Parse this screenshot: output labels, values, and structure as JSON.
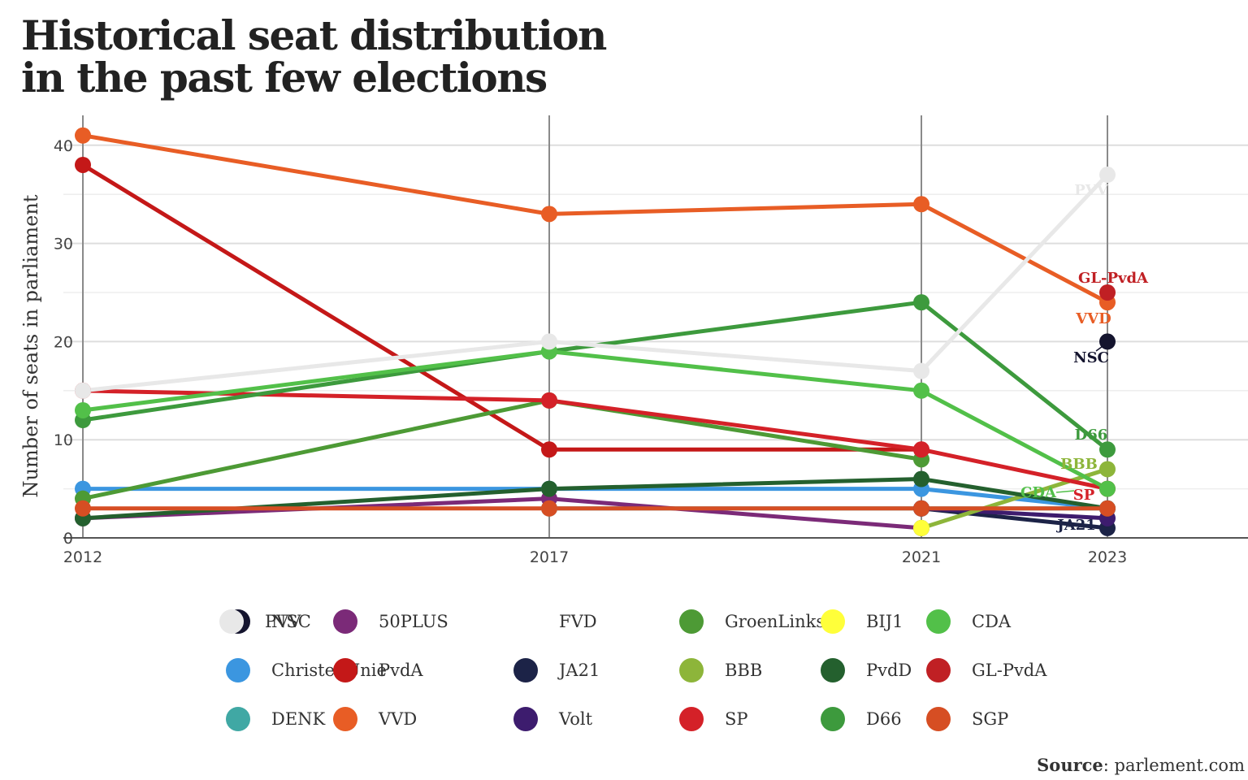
{
  "title_lines": [
    "Historical seat distribution",
    "in the past few elections"
  ],
  "source": {
    "label": "Source",
    "value": ": parlement.com"
  },
  "chart_data": {
    "type": "line",
    "title": "Historical seat distribution in the past few elections",
    "xlabel": "",
    "ylabel": "Number of seats in parliament",
    "x": [
      "2012",
      "2017",
      "2021",
      "2023"
    ],
    "ylim": [
      0,
      43
    ],
    "yticks": [
      0,
      10,
      20,
      30,
      40
    ],
    "grid": true,
    "legend_position": "bottom",
    "series": [
      {
        "name": "NSC",
        "color": "#14142e",
        "values": [
          null,
          null,
          null,
          20
        ],
        "label": "NSC"
      },
      {
        "name": "ChristenUnie",
        "color": "#3b96e0",
        "values": [
          5,
          5,
          5,
          3
        ]
      },
      {
        "name": "DENK",
        "color": "#40a8a4",
        "values": [
          null,
          3,
          3,
          3
        ]
      },
      {
        "name": "50PLUS",
        "color": "#7b2a78",
        "values": [
          2,
          4,
          1,
          null
        ]
      },
      {
        "name": "PvdA",
        "color": "#c41818",
        "values": [
          38,
          9,
          9,
          null
        ]
      },
      {
        "name": "VVD",
        "color": "#e85d25",
        "values": [
          41,
          33,
          34,
          24
        ],
        "label": "VVD"
      },
      {
        "name": "FVD",
        "color": "#ffffff",
        "values": [
          null,
          2,
          8,
          3
        ]
      },
      {
        "name": "JA21",
        "color": "#1c2347",
        "values": [
          null,
          null,
          3,
          1
        ],
        "label": "JA21"
      },
      {
        "name": "Volt",
        "color": "#3d1c6e",
        "values": [
          null,
          null,
          3,
          2
        ]
      },
      {
        "name": "GroenLinks",
        "color": "#4d9a35",
        "values": [
          4,
          14,
          8,
          null
        ]
      },
      {
        "name": "BBB",
        "color": "#8db53a",
        "values": [
          null,
          null,
          1,
          7
        ],
        "label": "BBB"
      },
      {
        "name": "SP",
        "color": "#d42128",
        "values": [
          15,
          14,
          9,
          5
        ],
        "label": "SP"
      },
      {
        "name": "BIJ1",
        "color": "#ffff3a",
        "values": [
          null,
          null,
          1,
          null
        ]
      },
      {
        "name": "PvdD",
        "color": "#24602e",
        "values": [
          2,
          5,
          6,
          3
        ]
      },
      {
        "name": "D66",
        "color": "#3d9a3d",
        "values": [
          12,
          19,
          24,
          9
        ],
        "label": "D66"
      },
      {
        "name": "CDA",
        "color": "#52c049",
        "values": [
          13,
          19,
          15,
          5
        ],
        "label": "CDA"
      },
      {
        "name": "GL-PvdA",
        "color": "#c02024",
        "values": [
          null,
          null,
          null,
          25
        ],
        "label": "GL-PvdA"
      },
      {
        "name": "SGP",
        "color": "#d64e23",
        "values": [
          3,
          3,
          3,
          3
        ]
      },
      {
        "name": "PVV",
        "color": "#e8e8e8",
        "values": [
          15,
          20,
          17,
          37
        ],
        "label": "PVV"
      }
    ]
  }
}
